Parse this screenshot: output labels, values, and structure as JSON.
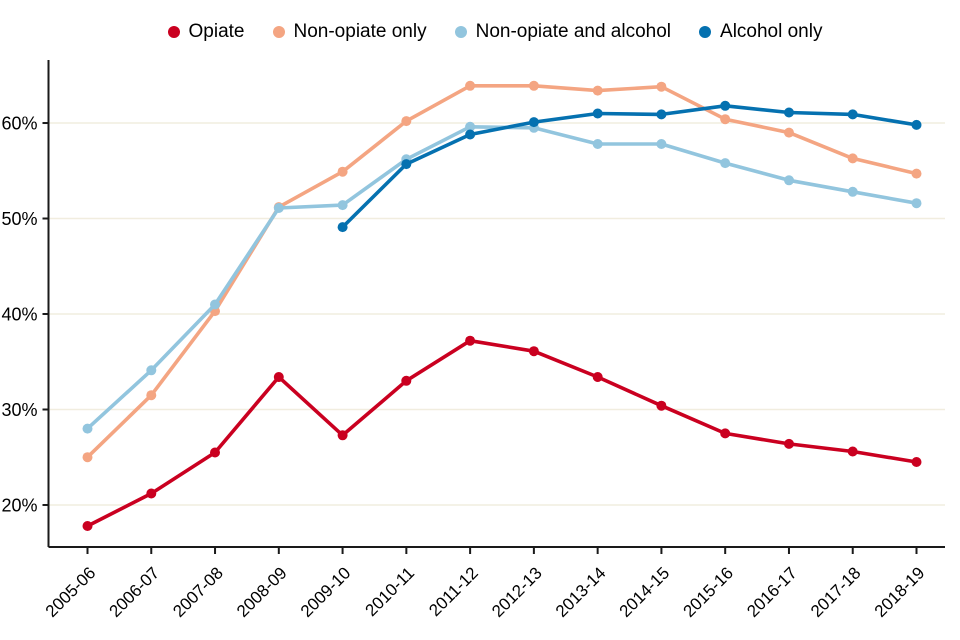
{
  "chart_data": {
    "type": "line",
    "categories": [
      "2005-06",
      "2006-07",
      "2007-08",
      "2008-09",
      "2009-10",
      "2010-11",
      "2011-12",
      "2012-13",
      "2013-14",
      "2014-15",
      "2015-16",
      "2016-17",
      "2017-18",
      "2018-19"
    ],
    "y_ticks": [
      "20%",
      "30%",
      "40%",
      "50%",
      "60%"
    ],
    "y_tick_values": [
      20,
      30,
      40,
      50,
      60
    ],
    "ylim": [
      15.6,
      66.6
    ],
    "grid": "horizontal-only",
    "legend_position": "top-center",
    "grid_color": "#f1eddf",
    "axis_color": "#1a1a1a",
    "series": [
      {
        "name": "Opiate",
        "color": "#ca0020",
        "values": [
          17.8,
          21.2,
          25.5,
          33.4,
          27.3,
          33.0,
          37.2,
          36.1,
          33.4,
          30.4,
          27.5,
          26.4,
          25.6,
          24.5
        ]
      },
      {
        "name": "Non-opiate only",
        "color": "#f4a582",
        "values": [
          25.0,
          31.5,
          40.3,
          51.2,
          54.9,
          60.2,
          63.9,
          63.9,
          63.4,
          63.8,
          60.4,
          59.0,
          56.3,
          54.7
        ]
      },
      {
        "name": "Non-opiate and alcohol",
        "color": "#92c5de",
        "values": [
          28.0,
          34.1,
          41.0,
          51.1,
          51.4,
          56.2,
          59.6,
          59.5,
          57.8,
          57.8,
          55.8,
          54.0,
          52.8,
          51.6
        ]
      },
      {
        "name": "Alcohol only",
        "color": "#0571b0",
        "values": [
          null,
          null,
          null,
          null,
          49.1,
          55.7,
          58.8,
          60.1,
          61.0,
          60.9,
          61.8,
          61.1,
          60.9,
          59.8
        ]
      }
    ]
  }
}
